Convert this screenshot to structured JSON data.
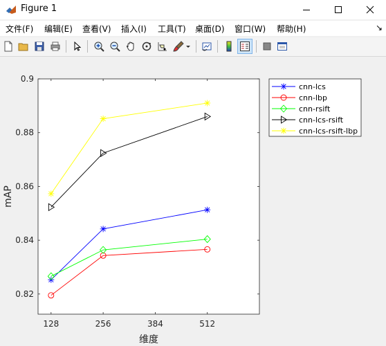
{
  "window": {
    "title": "Figure 1"
  },
  "menu": [
    "文件(F)",
    "编辑(E)",
    "查看(V)",
    "插入(I)",
    "工具(T)",
    "桌面(D)",
    "窗口(W)",
    "帮助(H)"
  ],
  "toolbar": {
    "icons": [
      "new-figure-icon",
      "open-file-icon",
      "save-icon",
      "print-icon",
      "edit-plot-arrow-icon",
      "zoom-in-icon",
      "zoom-out-icon",
      "pan-hand-icon",
      "rotate-3d-icon",
      "data-cursor-icon",
      "brush-icon",
      "brush-dropdown-icon",
      "link-plot-icon",
      "colorbar-icon",
      "legend-icon",
      "hide-plot-tools-icon",
      "show-plot-tools-icon"
    ]
  },
  "colors": {
    "blue": "#0000ff",
    "red": "#ff0000",
    "green": "#00ff00",
    "black": "#000000",
    "yellow": "#ffff00"
  },
  "chart_data": {
    "type": "line",
    "xlabel": "维度",
    "ylabel": "mAP",
    "x": [
      128,
      256,
      512
    ],
    "xticks": [
      128,
      256,
      384,
      512
    ],
    "xlim": [
      96,
      640
    ],
    "yticks": [
      0.82,
      0.84,
      0.86,
      0.88,
      0.9
    ],
    "ylim": [
      0.8125,
      0.9
    ],
    "legend_position": "outside-top-right",
    "grid": false,
    "series": [
      {
        "name": "cnn-lcs",
        "color": "#0000ff",
        "marker": "star",
        "values": [
          0.8253,
          0.8442,
          0.8513
        ]
      },
      {
        "name": "cnn-lbp",
        "color": "#ff0000",
        "marker": "circle",
        "values": [
          0.8195,
          0.8343,
          0.8366
        ]
      },
      {
        "name": "cnn-rsift",
        "color": "#00ff00",
        "marker": "diamond",
        "values": [
          0.8266,
          0.8364,
          0.8404
        ]
      },
      {
        "name": "cnn-lcs-rsift",
        "color": "#000000",
        "marker": "triangle-right",
        "values": [
          0.8523,
          0.8724,
          0.886
        ]
      },
      {
        "name": "cnn-lcs-rsift-lbp",
        "color": "#ffff00",
        "marker": "star",
        "values": [
          0.8573,
          0.8852,
          0.891
        ]
      }
    ]
  }
}
